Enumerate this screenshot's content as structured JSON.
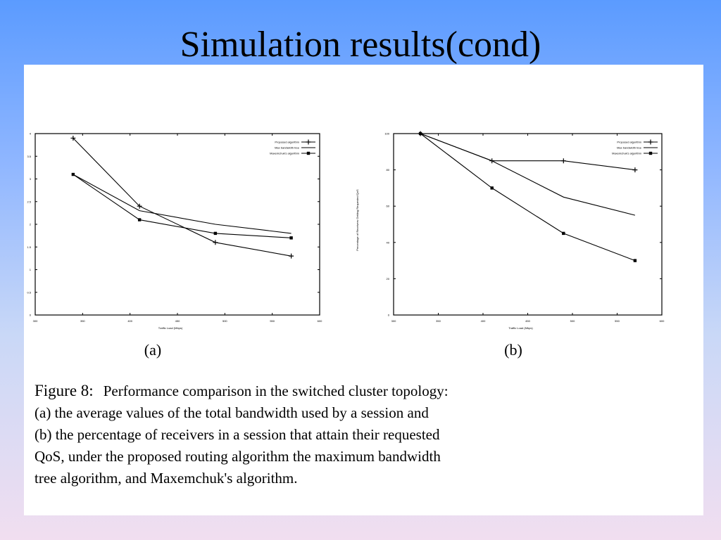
{
  "slide": {
    "title": "Simulation results(cond)"
  },
  "caption": {
    "figure_label": "Figure 8:",
    "line1": "Performance comparison in the switched cluster topology:",
    "line2": "(a) the average values of the total bandwidth used by a session and",
    "line3": "(b) the percentage of receivers in a session that attain their requested",
    "line4": "QoS, under the proposed routing algorithm the maximum bandwidth",
    "line5": "tree algorithm, and Maxemchuk's algorithm."
  },
  "chart_data": [
    {
      "type": "line",
      "sublabel": "(a)",
      "xlabel": "Traffic Load (Mbps)",
      "ylabel": "",
      "x_tick_labels": [
        "300",
        "350",
        "400",
        "450",
        "500",
        "550",
        "600"
      ],
      "y_tick_labels": [
        "0",
        "0.5",
        "1",
        "1.5",
        "2",
        "2.5",
        "3",
        "3.5",
        "4"
      ],
      "xlim": [
        300,
        600
      ],
      "ylim": [
        0,
        4
      ],
      "grid": false,
      "legend_position": "top-right",
      "series": [
        {
          "name": "Proposed algorithm",
          "marker": "+",
          "x": [
            340,
            410,
            490,
            570
          ],
          "y": [
            3.9,
            2.4,
            1.6,
            1.3
          ]
        },
        {
          "name": "Max bandwidth tree",
          "marker": "plain",
          "x": [
            340,
            410,
            490,
            570
          ],
          "y": [
            3.1,
            2.3,
            2.0,
            1.8
          ]
        },
        {
          "name": "Maxemchuk's algorithm",
          "marker": "square",
          "x": [
            340,
            410,
            490,
            570
          ],
          "y": [
            3.1,
            2.1,
            1.8,
            1.7
          ]
        }
      ]
    },
    {
      "type": "line",
      "sublabel": "(b)",
      "xlabel": "Traffic Load (Mbps)",
      "ylabel": "Percentage of Receivers Getting Requested QoS",
      "x_tick_labels": [
        "300",
        "350",
        "400",
        "450",
        "500",
        "550",
        "600"
      ],
      "y_tick_labels": [
        "0",
        "20",
        "40",
        "60",
        "80",
        "100"
      ],
      "xlim": [
        300,
        600
      ],
      "ylim": [
        0,
        100
      ],
      "grid": false,
      "legend_position": "top-right",
      "series": [
        {
          "name": "Proposed algorithm",
          "marker": "+",
          "x": [
            330,
            410,
            490,
            570
          ],
          "y": [
            100,
            85,
            85,
            80
          ]
        },
        {
          "name": "Max bandwidth tree",
          "marker": "plain",
          "x": [
            330,
            410,
            490,
            570
          ],
          "y": [
            100,
            85,
            65,
            55
          ]
        },
        {
          "name": "Maxemchuk's algorithm",
          "marker": "square",
          "x": [
            330,
            410,
            490,
            570
          ],
          "y": [
            100,
            70,
            45,
            30
          ]
        }
      ]
    }
  ]
}
